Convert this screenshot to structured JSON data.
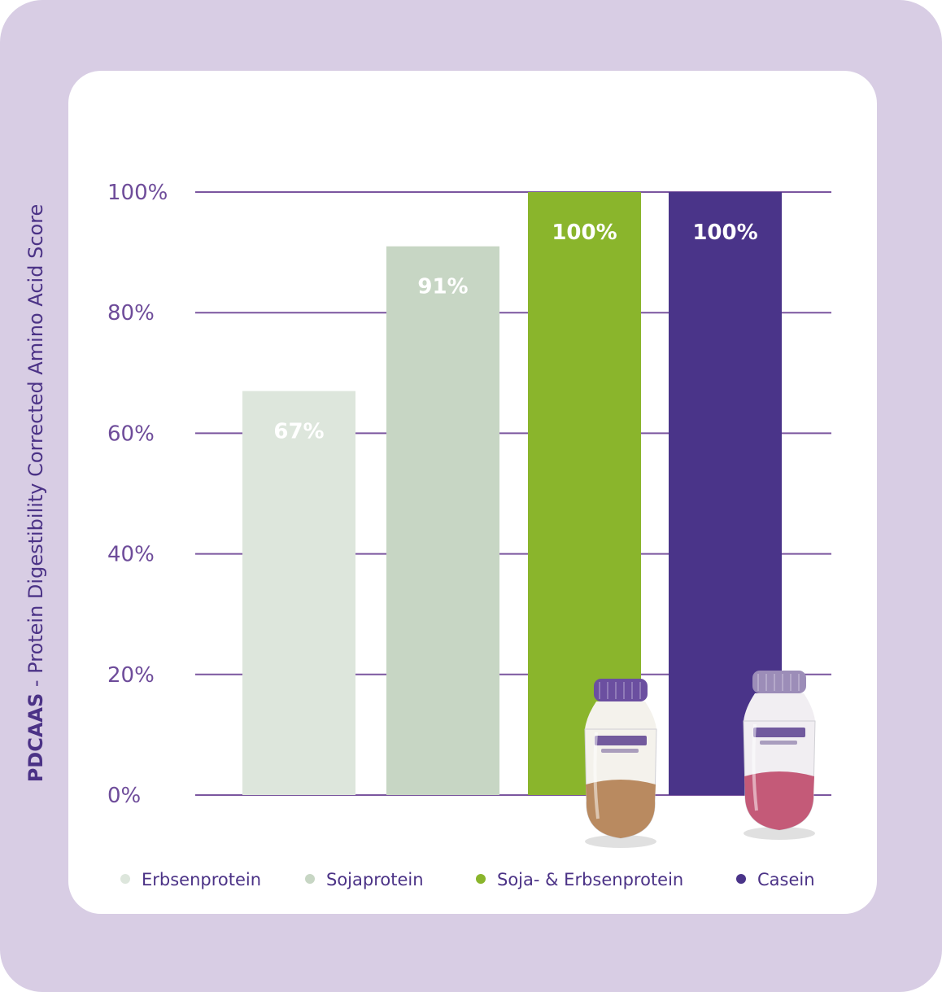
{
  "chart_data": {
    "type": "bar",
    "title": "",
    "xlabel": "",
    "ylabel": {
      "bold": "PDCAAS",
      "rest": " - Protein Digestibility Corrected Amino Acid Score"
    },
    "ylim": [
      0,
      100
    ],
    "yticks": [
      {
        "value": 0,
        "label": "0%"
      },
      {
        "value": 20,
        "label": "20%"
      },
      {
        "value": 40,
        "label": "40%"
      },
      {
        "value": 60,
        "label": "60%"
      },
      {
        "value": 80,
        "label": "80%"
      },
      {
        "value": 100,
        "label": "100%"
      }
    ],
    "grid": true,
    "legend_position": "bottom",
    "categories": [
      "Erbsenprotein",
      "Sojaprotein",
      "Soja- & Erbsenprotein",
      "Casein"
    ],
    "values": [
      67,
      91,
      100,
      100
    ],
    "value_labels": [
      "67%",
      "91%",
      "100%",
      "100%"
    ],
    "colors": [
      "#dde6dc",
      "#c7d6c4",
      "#8ab52c",
      "#4a3489"
    ]
  },
  "colors": {
    "frame": "#d8cde4",
    "gridline": "#7b569f",
    "text_purple": "#4b3286"
  },
  "products": [
    {
      "name": "fortimel-plantbased-bottle"
    },
    {
      "name": "fortimel-energy-bottle"
    }
  ]
}
